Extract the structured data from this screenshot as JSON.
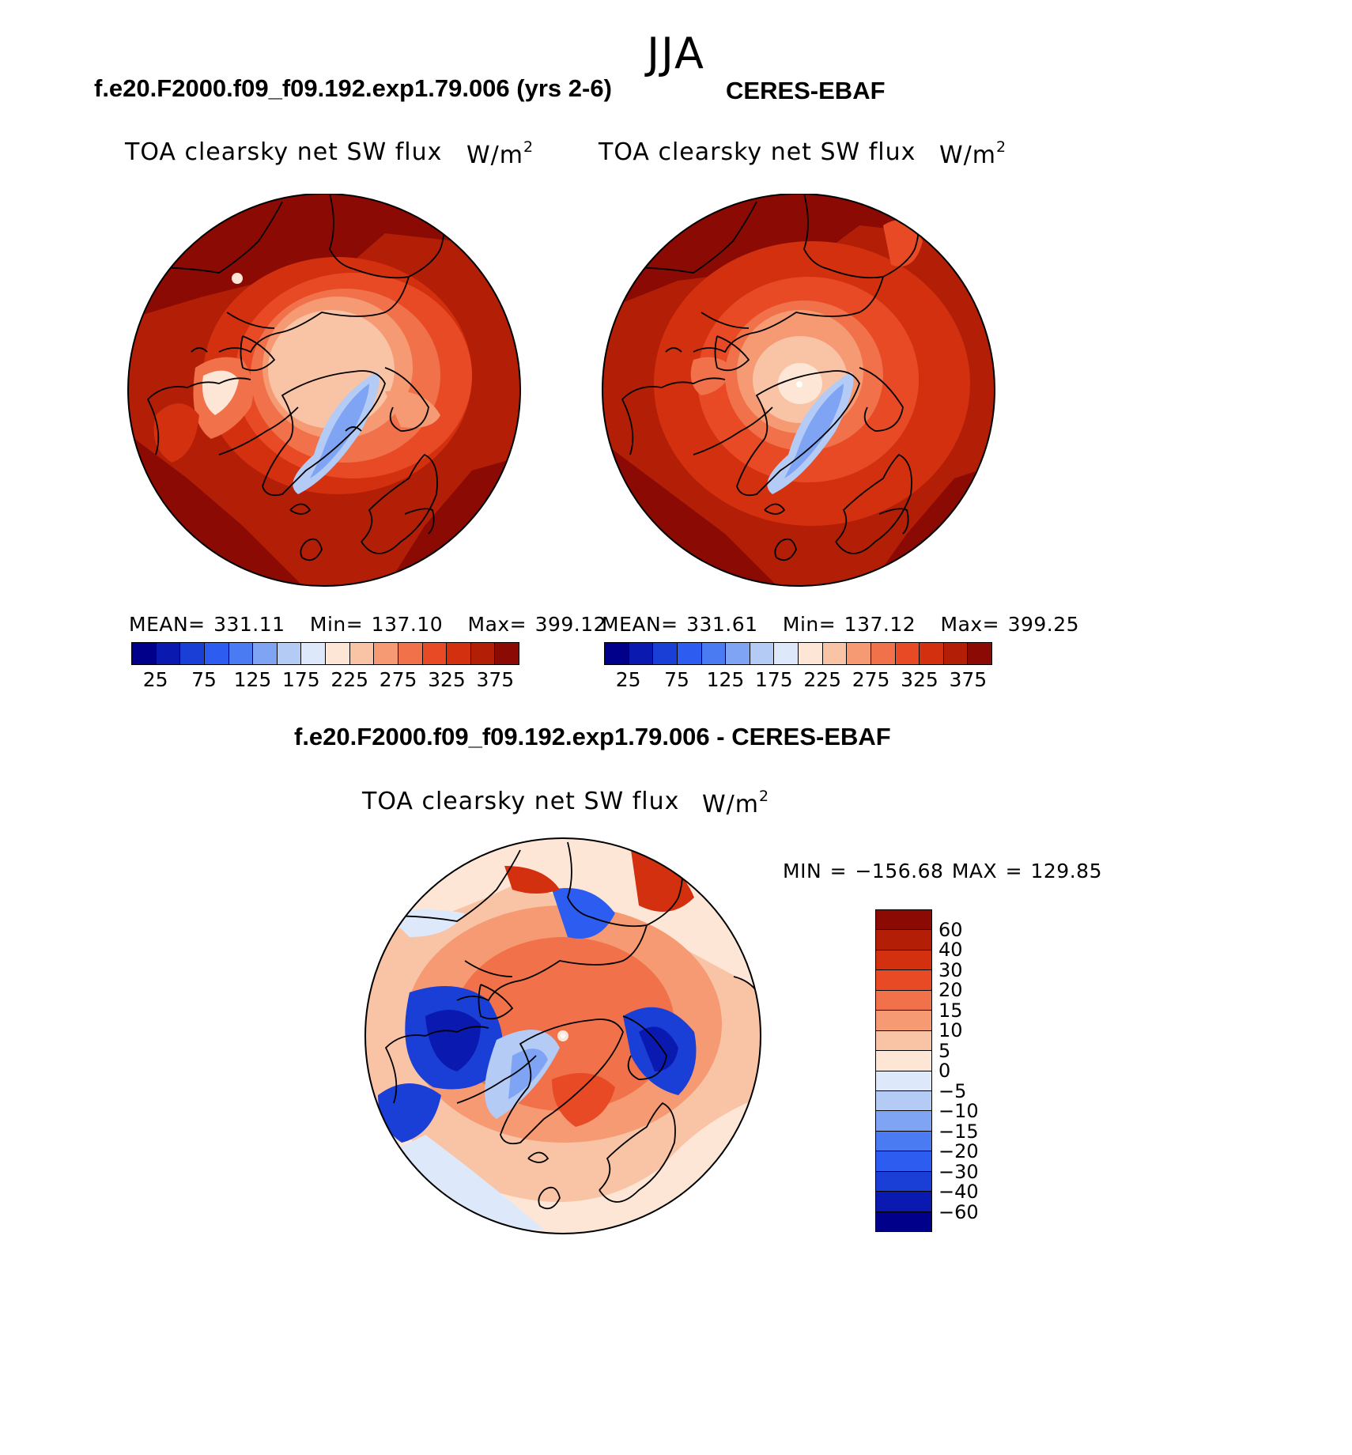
{
  "figure": {
    "season": "JJA",
    "model_case": "f.e20.F2000.f09_f09.192.exp1.79.006 (yrs 2-6)",
    "obs_case": "CERES-EBAF",
    "diff_title": "f.e20.F2000.f09_f09.192.exp1.79.006 - CERES-EBAF"
  },
  "panels": {
    "model": {
      "variable": "TOA clearsky net SW flux",
      "units_base": "W/m",
      "units_exp": "2",
      "mean_label": "MEAN=",
      "mean": "331.11",
      "min_label": "Min=",
      "min": "137.10",
      "max_label": "Max=",
      "max": "399.12"
    },
    "obs": {
      "variable": "TOA clearsky net SW flux",
      "units_base": "W/m",
      "units_exp": "2",
      "mean_label": "MEAN=",
      "mean": "331.61",
      "min_label": "Min=",
      "min": "137.12",
      "max_label": "Max=",
      "max": "399.25"
    },
    "diff": {
      "variable": "TOA clearsky net SW flux",
      "units_base": "W/m",
      "units_exp": "2",
      "minmax": "MIN = −156.68 MAX = 129.85"
    }
  },
  "colorbars": {
    "abs": {
      "colors": [
        "#00008b",
        "#0a1ab0",
        "#1a3fd6",
        "#2d5cf0",
        "#4a7bf2",
        "#7fa4f4",
        "#b4cbf6",
        "#dde9fa",
        "#fde6d5",
        "#f9c3a5",
        "#f59a73",
        "#f0714a",
        "#e84a25",
        "#d2300e",
        "#b31e07",
        "#8b0a03"
      ],
      "ticks": [
        "25",
        "75",
        "125",
        "175",
        "225",
        "275",
        "325",
        "375"
      ]
    },
    "diff": {
      "colors": [
        "#8b0a03",
        "#b31e07",
        "#d2300e",
        "#e84a25",
        "#f0714a",
        "#f59a73",
        "#f9c3a5",
        "#fde6d5",
        "#dde9fa",
        "#b4cbf6",
        "#7fa4f4",
        "#4a7bf2",
        "#2d5cf0",
        "#1a3fd6",
        "#0a1ab0",
        "#00008b"
      ],
      "ticks": [
        "60",
        "40",
        "30",
        "20",
        "15",
        "10",
        "5",
        "0",
        "−5",
        "−10",
        "−15",
        "−20",
        "−30",
        "−40",
        "−60"
      ]
    }
  }
}
